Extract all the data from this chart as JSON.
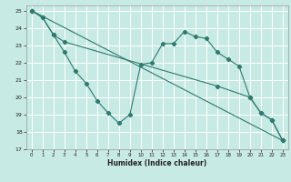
{
  "xlabel": "Humidex (Indice chaleur)",
  "xlim": [
    -0.5,
    23.5
  ],
  "ylim": [
    17,
    25.3
  ],
  "yticks": [
    17,
    18,
    19,
    20,
    21,
    22,
    23,
    24,
    25
  ],
  "xticks": [
    0,
    1,
    2,
    3,
    4,
    5,
    6,
    7,
    8,
    9,
    10,
    11,
    12,
    13,
    14,
    15,
    16,
    17,
    18,
    19,
    20,
    21,
    22,
    23
  ],
  "bg_color": "#c8eae4",
  "grid_color": "#ffffff",
  "line_color": "#2d7a6e",
  "line1_x": [
    0,
    23
  ],
  "line1_y": [
    25.0,
    17.5
  ],
  "line2_x": [
    0,
    1,
    2,
    3,
    17,
    20,
    21,
    22,
    23
  ],
  "line2_y": [
    25.0,
    24.6,
    23.6,
    23.2,
    20.65,
    20.0,
    19.1,
    18.7,
    17.5
  ],
  "line3_x": [
    0,
    1,
    2,
    3,
    4,
    5,
    6,
    7,
    8,
    9,
    10,
    11,
    12,
    13,
    14,
    15,
    16,
    17,
    18,
    19,
    20,
    21,
    22,
    23
  ],
  "line3_y": [
    25.0,
    24.6,
    23.6,
    22.6,
    21.5,
    20.8,
    19.8,
    19.1,
    18.5,
    19.0,
    21.9,
    22.0,
    23.1,
    23.1,
    23.8,
    23.5,
    23.4,
    22.6,
    22.2,
    21.8,
    20.0,
    19.1,
    18.7,
    17.5
  ]
}
